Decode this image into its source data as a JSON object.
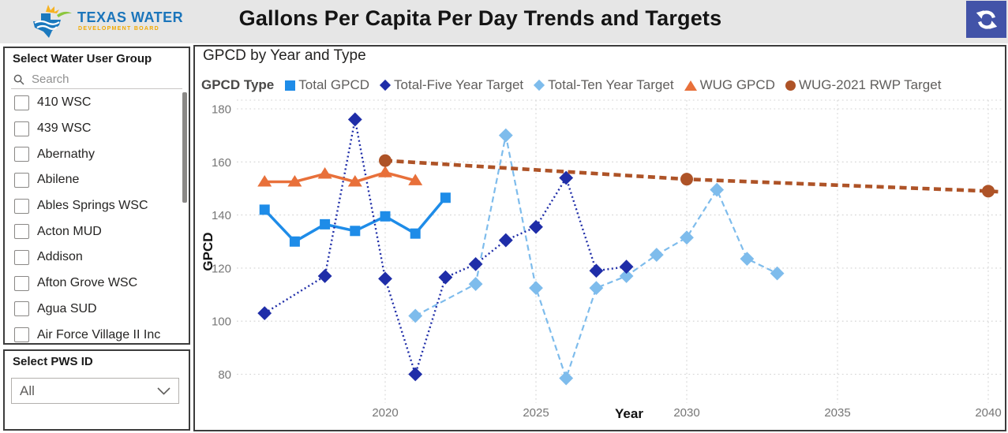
{
  "header": {
    "title": "Gallons Per Capita Per Day Trends and Targets",
    "logo": {
      "line1": "TEXAS WATER",
      "line2": "DEVELOPMENT BOARD"
    }
  },
  "icons": {
    "refresh": "sync-arrows",
    "search": "magnifier",
    "pws_dropdown": "chevron-down"
  },
  "sidebar": {
    "wug_slicer": {
      "title": "Select Water User Group",
      "search_placeholder": "Search",
      "items": [
        "410 WSC",
        "439 WSC",
        "Abernathy",
        "Abilene",
        "Ables Springs WSC",
        "Acton MUD",
        "Addison",
        "Afton Grove WSC",
        "Agua SUD",
        "Air Force Village II Inc"
      ],
      "all_unchecked": true
    },
    "pws_slicer": {
      "title": "Select PWS ID",
      "selected_value": "All"
    }
  },
  "chart": {
    "title": "GPCD by Year and Type",
    "legend_title": "GPCD Type",
    "xlabel": "Year",
    "ylabel": "GPCD"
  },
  "chart_data": {
    "type": "line",
    "title": "GPCD by Year and Type",
    "xlabel": "Year",
    "ylabel": "GPCD",
    "x_ticks": [
      2020,
      2025,
      2030,
      2035,
      2040
    ],
    "y_ticks": [
      80,
      100,
      120,
      140,
      160,
      180
    ],
    "xlim": [
      2015.1,
      2040.6
    ],
    "ylim": [
      76.5,
      183.5
    ],
    "grid": true,
    "legend_position": "top",
    "series": [
      {
        "name": "Total GPCD",
        "color": "#1E8CE8",
        "marker": "square",
        "line_style": "solid",
        "points": [
          [
            2016,
            142
          ],
          [
            2017,
            130
          ],
          [
            2018,
            136.5
          ],
          [
            2019,
            134
          ],
          [
            2020,
            139.5
          ],
          [
            2021,
            133
          ],
          [
            2022,
            146.5
          ]
        ]
      },
      {
        "name": "Total-Five Year Target",
        "color": "#1F2DA8",
        "marker": "diamond",
        "line_style": "dotted",
        "points": [
          [
            2016,
            103
          ],
          [
            2018,
            117
          ],
          [
            2019,
            176
          ],
          [
            2020,
            116
          ],
          [
            2021,
            80
          ],
          [
            2022,
            116.5
          ],
          [
            2023,
            121.5
          ],
          [
            2024,
            130.5
          ],
          [
            2025,
            135.5
          ],
          [
            2026,
            154
          ],
          [
            2027,
            119
          ],
          [
            2028,
            120.5
          ]
        ]
      },
      {
        "name": "Total-Ten Year Target",
        "color": "#7EBCEC",
        "marker": "diamond",
        "line_style": "dashed",
        "points": [
          [
            2021,
            102
          ],
          [
            2023,
            114
          ],
          [
            2024,
            170
          ],
          [
            2025,
            112.5
          ],
          [
            2026,
            78.5
          ],
          [
            2027,
            112.5
          ],
          [
            2028,
            117
          ],
          [
            2029,
            125
          ],
          [
            2030,
            131.5
          ],
          [
            2031,
            149.5
          ],
          [
            2032,
            123.5
          ],
          [
            2033,
            118
          ]
        ]
      },
      {
        "name": "WUG GPCD",
        "color": "#E8703A",
        "marker": "triangle",
        "line_style": "solid",
        "points": [
          [
            2016,
            152.5
          ],
          [
            2017,
            152.5
          ],
          [
            2018,
            155.5
          ],
          [
            2019,
            152.5
          ],
          [
            2020,
            156
          ],
          [
            2021,
            153
          ]
        ]
      },
      {
        "name": "WUG-2021 RWP Target",
        "color": "#AE5327",
        "marker": "circle",
        "line_style": "dashed-bold",
        "points": [
          [
            2020,
            160.5
          ],
          [
            2030,
            153.5
          ],
          [
            2040,
            149
          ]
        ]
      }
    ]
  },
  "colors": {
    "header_bg": "#E6E6E6",
    "refresh_button_bg": "#4253A8",
    "panel_border": "#3C3C3C",
    "gridline": "#D4D4D4",
    "tick_text": "#767676",
    "legend_text": "#605E5C"
  }
}
